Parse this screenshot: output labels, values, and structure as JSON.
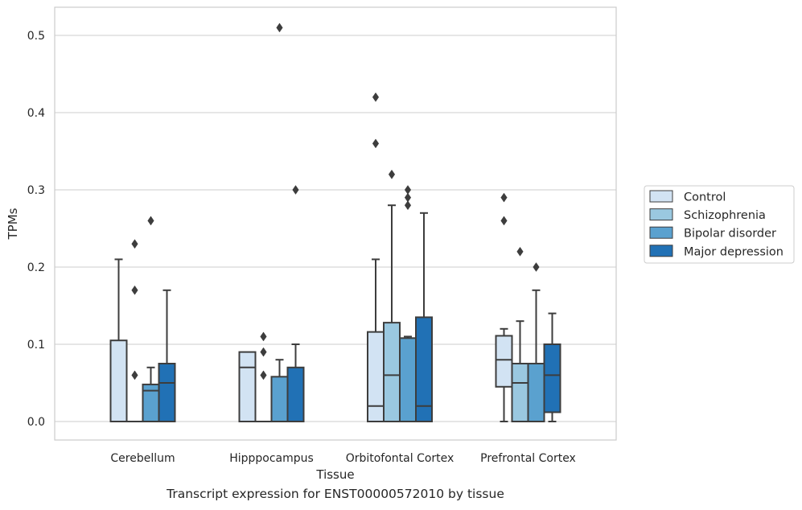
{
  "caption": "Transcript expression for ENST00000572010 by tissue",
  "chart_data": {
    "type": "box",
    "xlabel": "Tissue",
    "ylabel": "TPMs",
    "ylim": [
      -0.025,
      0.537
    ],
    "yticks": [
      0.0,
      0.1,
      0.2,
      0.3,
      0.4,
      0.5
    ],
    "ytick_labels": [
      "0.0",
      "0.1",
      "0.2",
      "0.3",
      "0.4",
      "0.5"
    ],
    "grid": "horizontal",
    "legend_position": "right",
    "categories": [
      "Cerebellum",
      "Hipppocampus",
      "Orbitofontal Cortex",
      "Prefrontal Cortex"
    ],
    "series": [
      {
        "name": "Control",
        "color": "#d2e3f3",
        "boxes": [
          {
            "q1": 0.0,
            "median": 0.0,
            "q3": 0.105,
            "whisker_low": 0.0,
            "whisker_high": 0.21,
            "outliers": []
          },
          {
            "q1": 0.0,
            "median": 0.07,
            "q3": 0.09,
            "whisker_low": 0.0,
            "whisker_high": 0.09,
            "outliers": []
          },
          {
            "q1": 0.0,
            "median": 0.02,
            "q3": 0.116,
            "whisker_low": 0.0,
            "whisker_high": 0.21,
            "outliers": [
              0.36,
              0.42
            ]
          },
          {
            "q1": 0.045,
            "median": 0.08,
            "q3": 0.111,
            "whisker_low": 0.0,
            "whisker_high": 0.12,
            "outliers": [
              0.26,
              0.29
            ]
          }
        ]
      },
      {
        "name": "Schizophrenia",
        "color": "#9ac8e0",
        "boxes": [
          {
            "q1": 0.0,
            "median": 0.0,
            "q3": 0.0,
            "whisker_low": 0.0,
            "whisker_high": 0.0,
            "outliers": [
              0.06,
              0.17,
              0.23
            ]
          },
          {
            "q1": 0.0,
            "median": 0.0,
            "q3": 0.0,
            "whisker_low": 0.0,
            "whisker_high": 0.0,
            "outliers": [
              0.06,
              0.09,
              0.11
            ]
          },
          {
            "q1": 0.0,
            "median": 0.06,
            "q3": 0.128,
            "whisker_low": 0.0,
            "whisker_high": 0.28,
            "outliers": [
              0.32
            ]
          },
          {
            "q1": 0.0,
            "median": 0.05,
            "q3": 0.075,
            "whisker_low": 0.0,
            "whisker_high": 0.13,
            "outliers": [
              0.22
            ]
          }
        ]
      },
      {
        "name": "Bipolar disorder",
        "color": "#5aa1cf",
        "boxes": [
          {
            "q1": 0.0,
            "median": 0.04,
            "q3": 0.048,
            "whisker_low": 0.0,
            "whisker_high": 0.07,
            "outliers": [
              0.26
            ]
          },
          {
            "q1": 0.0,
            "median": 0.0,
            "q3": 0.058,
            "whisker_low": 0.0,
            "whisker_high": 0.08,
            "outliers": [
              0.51
            ]
          },
          {
            "q1": 0.0,
            "median": 0.0,
            "q3": 0.108,
            "whisker_low": 0.0,
            "whisker_high": 0.11,
            "outliers": [
              0.28,
              0.29,
              0.3
            ]
          },
          {
            "q1": 0.0,
            "median": 0.0,
            "q3": 0.075,
            "whisker_low": 0.0,
            "whisker_high": 0.17,
            "outliers": [
              0.2
            ]
          }
        ]
      },
      {
        "name": "Major depression",
        "color": "#2171b5",
        "boxes": [
          {
            "q1": 0.0,
            "median": 0.05,
            "q3": 0.075,
            "whisker_low": 0.0,
            "whisker_high": 0.17,
            "outliers": []
          },
          {
            "q1": 0.0,
            "median": 0.0,
            "q3": 0.07,
            "whisker_low": 0.0,
            "whisker_high": 0.1,
            "outliers": [
              0.3
            ]
          },
          {
            "q1": 0.0,
            "median": 0.02,
            "q3": 0.135,
            "whisker_low": 0.0,
            "whisker_high": 0.27,
            "outliers": []
          },
          {
            "q1": 0.012,
            "median": 0.06,
            "q3": 0.1,
            "whisker_low": 0.0,
            "whisker_high": 0.14,
            "outliers": []
          }
        ]
      }
    ]
  }
}
